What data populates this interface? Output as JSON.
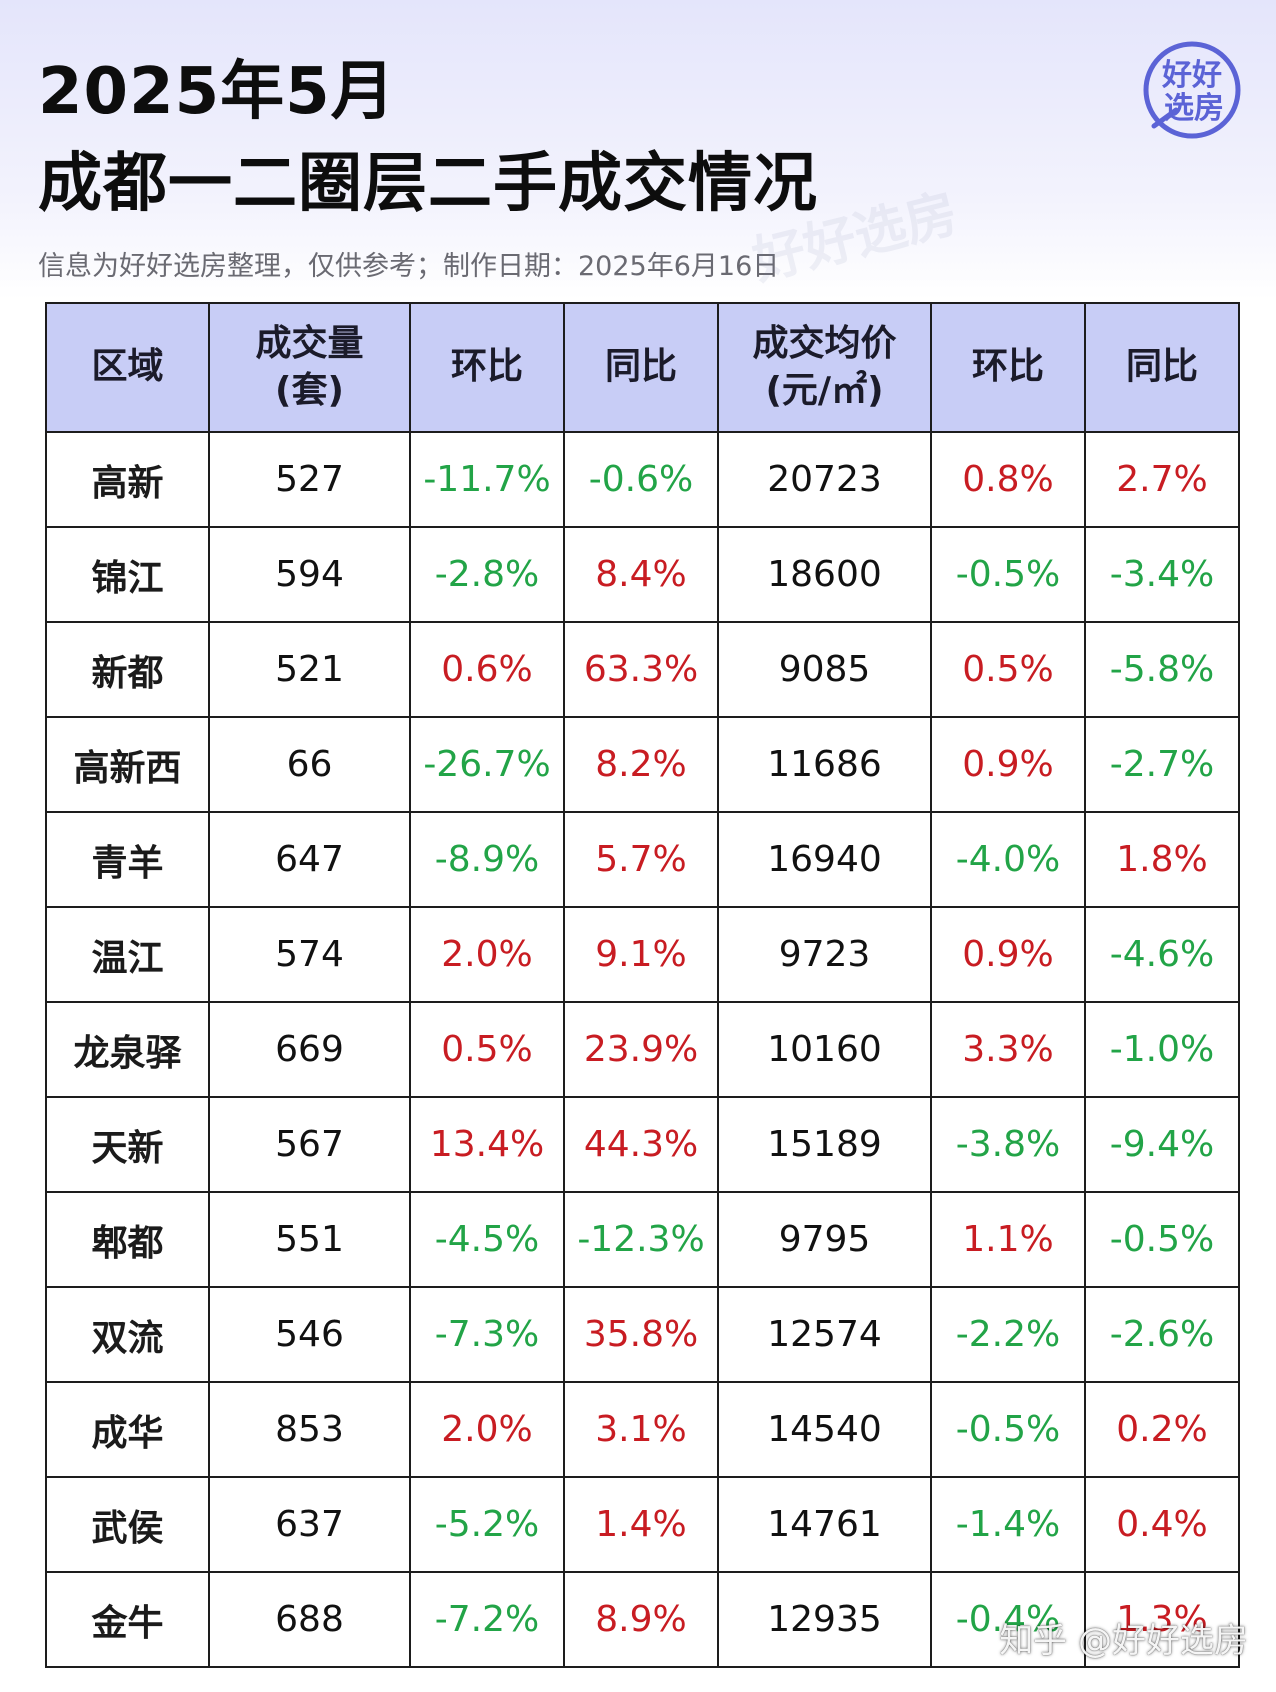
{
  "title": {
    "line1": "2025年5月",
    "line2": "成都一二圈层二手成交情况"
  },
  "subtitle": "信息为好好选房整理，仅供参考；制作日期：2025年6月16日",
  "logo": {
    "line1": "好好",
    "line2": "选房",
    "color": "#5b63d6"
  },
  "watermarks": [
    "好好选房"
  ],
  "corner_mark": "知乎 @好好选房",
  "colors": {
    "header_bg": "#c8cdf6",
    "positive": "#c81c22",
    "negative": "#22a447"
  },
  "table": {
    "headers": [
      {
        "line1": "区域",
        "line2": ""
      },
      {
        "line1": "成交量",
        "line2": "(套)"
      },
      {
        "line1": "环比",
        "line2": ""
      },
      {
        "line1": "同比",
        "line2": ""
      },
      {
        "line1": "成交均价",
        "line2": "(元/㎡)"
      },
      {
        "line1": "环比",
        "line2": ""
      },
      {
        "line1": "同比",
        "line2": ""
      }
    ],
    "rows": [
      [
        "高新",
        "527",
        "-11.7%",
        "-0.6%",
        "20723",
        "0.8%",
        "2.7%"
      ],
      [
        "锦江",
        "594",
        "-2.8%",
        "8.4%",
        "18600",
        "-0.5%",
        "-3.4%"
      ],
      [
        "新都",
        "521",
        "0.6%",
        "63.3%",
        "9085",
        "0.5%",
        "-5.8%"
      ],
      [
        "高新西",
        "66",
        "-26.7%",
        "8.2%",
        "11686",
        "0.9%",
        "-2.7%"
      ],
      [
        "青羊",
        "647",
        "-8.9%",
        "5.7%",
        "16940",
        "-4.0%",
        "1.8%"
      ],
      [
        "温江",
        "574",
        "2.0%",
        "9.1%",
        "9723",
        "0.9%",
        "-4.6%"
      ],
      [
        "龙泉驿",
        "669",
        "0.5%",
        "23.9%",
        "10160",
        "3.3%",
        "-1.0%"
      ],
      [
        "天新",
        "567",
        "13.4%",
        "44.3%",
        "15189",
        "-3.8%",
        "-9.4%"
      ],
      [
        "郫都",
        "551",
        "-4.5%",
        "-12.3%",
        "9795",
        "1.1%",
        "-0.5%"
      ],
      [
        "双流",
        "546",
        "-7.3%",
        "35.8%",
        "12574",
        "-2.2%",
        "-2.6%"
      ],
      [
        "成华",
        "853",
        "2.0%",
        "3.1%",
        "14540",
        "-0.5%",
        "0.2%"
      ],
      [
        "武侯",
        "637",
        "-5.2%",
        "1.4%",
        "14761",
        "-1.4%",
        "0.4%"
      ],
      [
        "金牛",
        "688",
        "-7.2%",
        "8.9%",
        "12935",
        "-0.4%",
        "1.3%"
      ]
    ]
  }
}
